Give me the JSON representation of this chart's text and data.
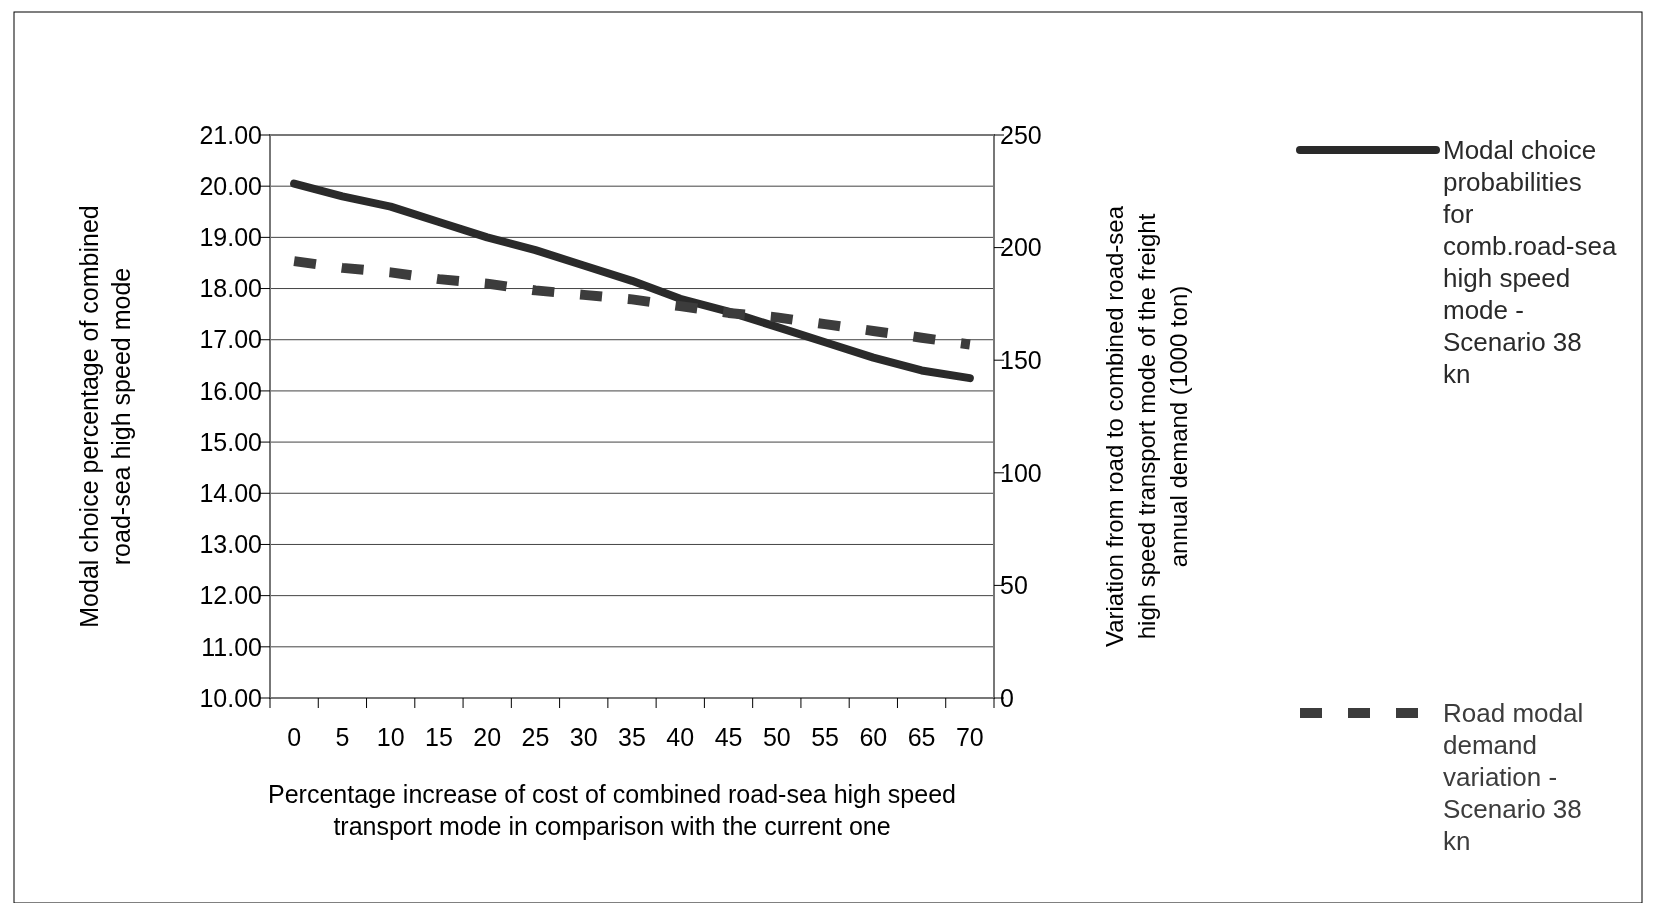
{
  "chart_data": {
    "type": "line",
    "xlabel": "Percentage increase of cost of combined road-sea high speed transport mode in comparison with the current one",
    "ylabel": "Modal choice percentage of combined road-sea high speed mode",
    "y2label": "Variation from road to combined road-sea high speed transport mode of the freight annual demand (1000 ton)",
    "categories": [
      "0",
      "5",
      "10",
      "15",
      "20",
      "25",
      "30",
      "35",
      "40",
      "45",
      "50",
      "55",
      "60",
      "65",
      "70"
    ],
    "ylim": [
      10,
      21
    ],
    "yticks": [
      {
        "value": 10,
        "label": "10.00"
      },
      {
        "value": 11,
        "label": "11.00"
      },
      {
        "value": 12,
        "label": "12.00"
      },
      {
        "value": 13,
        "label": "13.00"
      },
      {
        "value": 14,
        "label": "14.00"
      },
      {
        "value": 15,
        "label": "15.00"
      },
      {
        "value": 16,
        "label": "16.00"
      },
      {
        "value": 17,
        "label": "17.00"
      },
      {
        "value": 18,
        "label": "18.00"
      },
      {
        "value": 19,
        "label": "19.00"
      },
      {
        "value": 20,
        "label": "20.00"
      },
      {
        "value": 21,
        "label": "21.00"
      }
    ],
    "y2lim": [
      0,
      250
    ],
    "y2ticks": [
      0,
      50,
      100,
      150,
      200,
      250
    ],
    "grid": "y",
    "legend": "right",
    "series": [
      {
        "name": "Modal choice probabilities for comb.road-sea high speed mode - Scenario 38 kn",
        "color": "#2a2a2a",
        "line_style": "solid",
        "values": [
          20.05,
          19.8,
          19.6,
          19.3,
          19.0,
          18.75,
          18.45,
          18.15,
          17.8,
          17.55,
          17.25,
          16.95,
          16.65,
          16.4,
          16.25
        ]
      },
      {
        "name": "Road modal demand variation - Scenario 38 kn",
        "color": "#3c3c3c",
        "line_style": "dashed",
        "axis": "y2",
        "values": [
          194,
          191,
          189,
          186,
          184,
          181,
          179,
          177,
          174,
          171,
          169,
          166,
          163,
          160,
          157
        ]
      }
    ]
  }
}
